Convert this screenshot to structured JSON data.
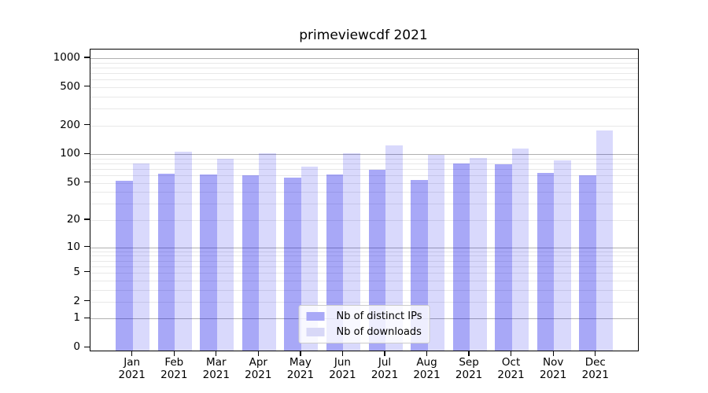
{
  "figure": {
    "background": "#ffffff",
    "text_color": "#000000"
  },
  "chart_data": {
    "type": "bar",
    "title": "primeviewcdf 2021",
    "categories": [
      "Jan 2021",
      "Feb 2021",
      "Mar 2021",
      "Apr 2021",
      "May 2021",
      "Jun 2021",
      "Jul 2021",
      "Aug 2021",
      "Sep 2021",
      "Oct 2021",
      "Nov 2021",
      "Dec 2021"
    ],
    "series": [
      {
        "name": "Nb of distinct IPs",
        "color": "rgba(0,0,232,0.34)",
        "solid_color": "#a9a9f7",
        "values": [
          53,
          62,
          61,
          60,
          57,
          61,
          69,
          54,
          80,
          79,
          64,
          60
        ]
      },
      {
        "name": "Nb of downloads",
        "color": "rgba(0,0,232,0.15)",
        "solid_color": "#d8d8f7",
        "values": [
          80,
          107,
          89,
          102,
          74,
          103,
          125,
          99,
          92,
          115,
          87,
          176
        ]
      }
    ],
    "xlabel": "",
    "ylabel": "",
    "yscale": "symlog",
    "yticks": [
      0,
      1,
      2,
      5,
      10,
      20,
      50,
      100,
      200,
      500,
      1000
    ],
    "ylim": [
      0,
      1230
    ],
    "grid": {
      "horizontal": true,
      "major_color": "#b0b0b0",
      "minor_color": "#e8e8e8"
    },
    "legend": {
      "position": "lower center",
      "entries": [
        "Nb of distinct IPs",
        "Nb of downloads"
      ]
    }
  }
}
